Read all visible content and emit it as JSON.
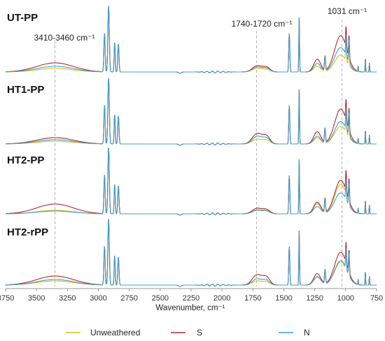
{
  "chart_data": {
    "type": "line",
    "xlabel": "Wavenumber, cm⁻¹",
    "x_ticks": [
      3750,
      3500,
      3250,
      3000,
      2750,
      2500,
      2250,
      2000,
      1750,
      1500,
      1250,
      1000,
      750
    ],
    "xlim": [
      3750,
      750
    ],
    "x_reversed": true,
    "annotations": [
      {
        "text": "3410-3460 cm⁻¹",
        "x": 3350
      },
      {
        "text": "1740-1720 cm⁻¹",
        "x": 1720
      },
      {
        "text": "1031 cm⁻¹",
        "x": 1031
      }
    ],
    "legend": {
      "position": "bottom"
    },
    "series_styles": [
      {
        "name": "Unweathered",
        "color": "#d4c21a"
      },
      {
        "name": "S",
        "color": "#b22a2a"
      },
      {
        "name": "N",
        "color": "#3f9fd2"
      }
    ],
    "panels": [
      {
        "label": "UT-PP",
        "series": [
          {
            "name": "Unweathered",
            "oh_band": 0.05,
            "co_band": 0.05,
            "c1031": 0.24
          },
          {
            "name": "S",
            "oh_band": 0.13,
            "co_band": 0.09,
            "c1031": 0.52
          },
          {
            "name": "N",
            "oh_band": 0.08,
            "co_band": 0.07,
            "c1031": 0.35
          }
        ]
      },
      {
        "label": "HT1-PP",
        "series": [
          {
            "name": "Unweathered",
            "oh_band": 0.04,
            "co_band": 0.07,
            "c1031": 0.25
          },
          {
            "name": "S",
            "oh_band": 0.09,
            "co_band": 0.15,
            "c1031": 0.5
          },
          {
            "name": "N",
            "oh_band": 0.06,
            "co_band": 0.11,
            "c1031": 0.32
          }
        ]
      },
      {
        "label": "HT2-PP",
        "series": [
          {
            "name": "Unweathered",
            "oh_band": 0.05,
            "co_band": 0.06,
            "c1031": 0.42
          },
          {
            "name": "S",
            "oh_band": 0.14,
            "co_band": 0.08,
            "c1031": 0.48
          },
          {
            "name": "N",
            "oh_band": 0.04,
            "co_band": 0.05,
            "c1031": 0.3
          }
        ]
      },
      {
        "label": "HT2-rPP",
        "series": [
          {
            "name": "Unweathered",
            "oh_band": 0.06,
            "co_band": 0.06,
            "c1031": 0.33
          },
          {
            "name": "S",
            "oh_band": 0.13,
            "co_band": 0.15,
            "c1031": 0.47
          },
          {
            "name": "N",
            "oh_band": 0.08,
            "co_band": 0.09,
            "c1031": 0.35
          }
        ]
      }
    ]
  }
}
